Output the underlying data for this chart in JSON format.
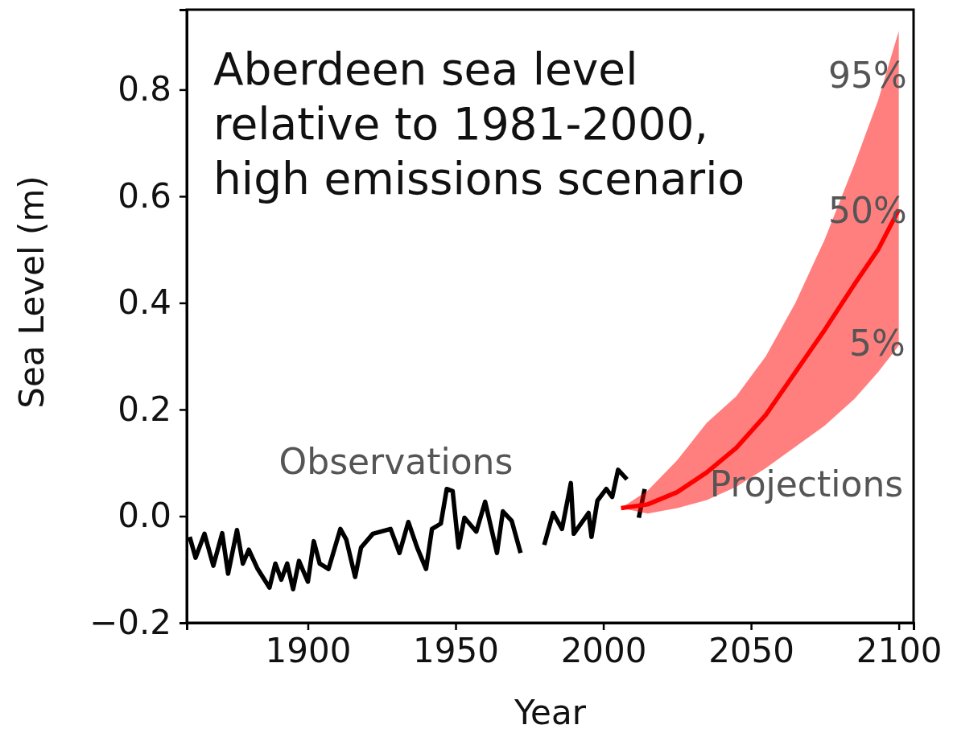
{
  "chart_data": {
    "type": "line",
    "title": "Aberdeen sea level\nrelative to 1981-2000,\nhigh emissions scenario",
    "xlabel": "Year",
    "ylabel": "Sea Level (m)",
    "xlim": [
      1859,
      2105
    ],
    "xticks": [
      1900,
      1950,
      2000,
      2050,
      2100
    ],
    "ylim": [
      -0.2,
      0.95
    ],
    "yticks": [
      {
        "value": -0.2,
        "label": "−0.2"
      },
      {
        "value": 0,
        "label": "0.0"
      },
      0.2,
      0.4,
      0.6,
      0.8
    ],
    "grid": false,
    "series": [
      {
        "color": "#000000",
        "x": [
          1860,
          1862,
          1865,
          1868,
          1871,
          1873,
          1876,
          1878,
          1880,
          1883,
          1887,
          1889,
          1891,
          1893,
          1895,
          1897,
          1900,
          1902,
          1904,
          1907,
          1911,
          1913,
          1916,
          1918,
          1922,
          1928,
          1931,
          1934,
          1937,
          1940,
          1942,
          1945,
          1947,
          1949,
          1951,
          1953,
          1957,
          1960,
          1964,
          1966,
          1969,
          1972
        ],
        "values": [
          -0.039,
          -0.078,
          -0.033,
          -0.093,
          -0.032,
          -0.108,
          -0.026,
          -0.089,
          -0.063,
          -0.099,
          -0.134,
          -0.089,
          -0.119,
          -0.089,
          -0.137,
          -0.084,
          -0.123,
          -0.047,
          -0.089,
          -0.099,
          -0.024,
          -0.044,
          -0.114,
          -0.059,
          -0.033,
          -0.024,
          -0.069,
          -0.011,
          -0.059,
          -0.099,
          -0.024,
          -0.014,
          0.051,
          0.047,
          -0.059,
          -0.003,
          -0.029,
          0.027,
          -0.069,
          0.009,
          -0.009,
          -0.069
        ]
      },
      {
        "color": "#000000",
        "x": [
          1980,
          1983,
          1986,
          1989,
          1990,
          1995,
          1996,
          1998,
          2001,
          2003,
          2005,
          2008
        ],
        "values": [
          -0.054,
          0.006,
          -0.024,
          0.062,
          -0.033,
          0.006,
          -0.039,
          0.029,
          0.051,
          0.036,
          0.087,
          0.069
        ]
      },
      {
        "color": "#000000",
        "x": [
          2012,
          2014
        ],
        "values": [
          -0.003,
          0.051
        ]
      },
      {
        "color": "#ff0000",
        "x": [
          2006,
          2015,
          2025,
          2035,
          2045,
          2055,
          2065,
          2075,
          2085,
          2093,
          2100
        ],
        "values": [
          0.015,
          0.022,
          0.045,
          0.082,
          0.128,
          0.19,
          0.27,
          0.35,
          0.435,
          0.5,
          0.575
        ],
        "lower": [
          0.015,
          0.005,
          0.015,
          0.03,
          0.055,
          0.09,
          0.13,
          0.17,
          0.22,
          0.27,
          0.32
        ],
        "upper": [
          0.015,
          0.048,
          0.105,
          0.175,
          0.225,
          0.3,
          0.4,
          0.52,
          0.66,
          0.78,
          0.91
        ]
      }
    ],
    "annotations": [
      "95%",
      "50%",
      "5%",
      "Projections",
      "Observations"
    ]
  }
}
